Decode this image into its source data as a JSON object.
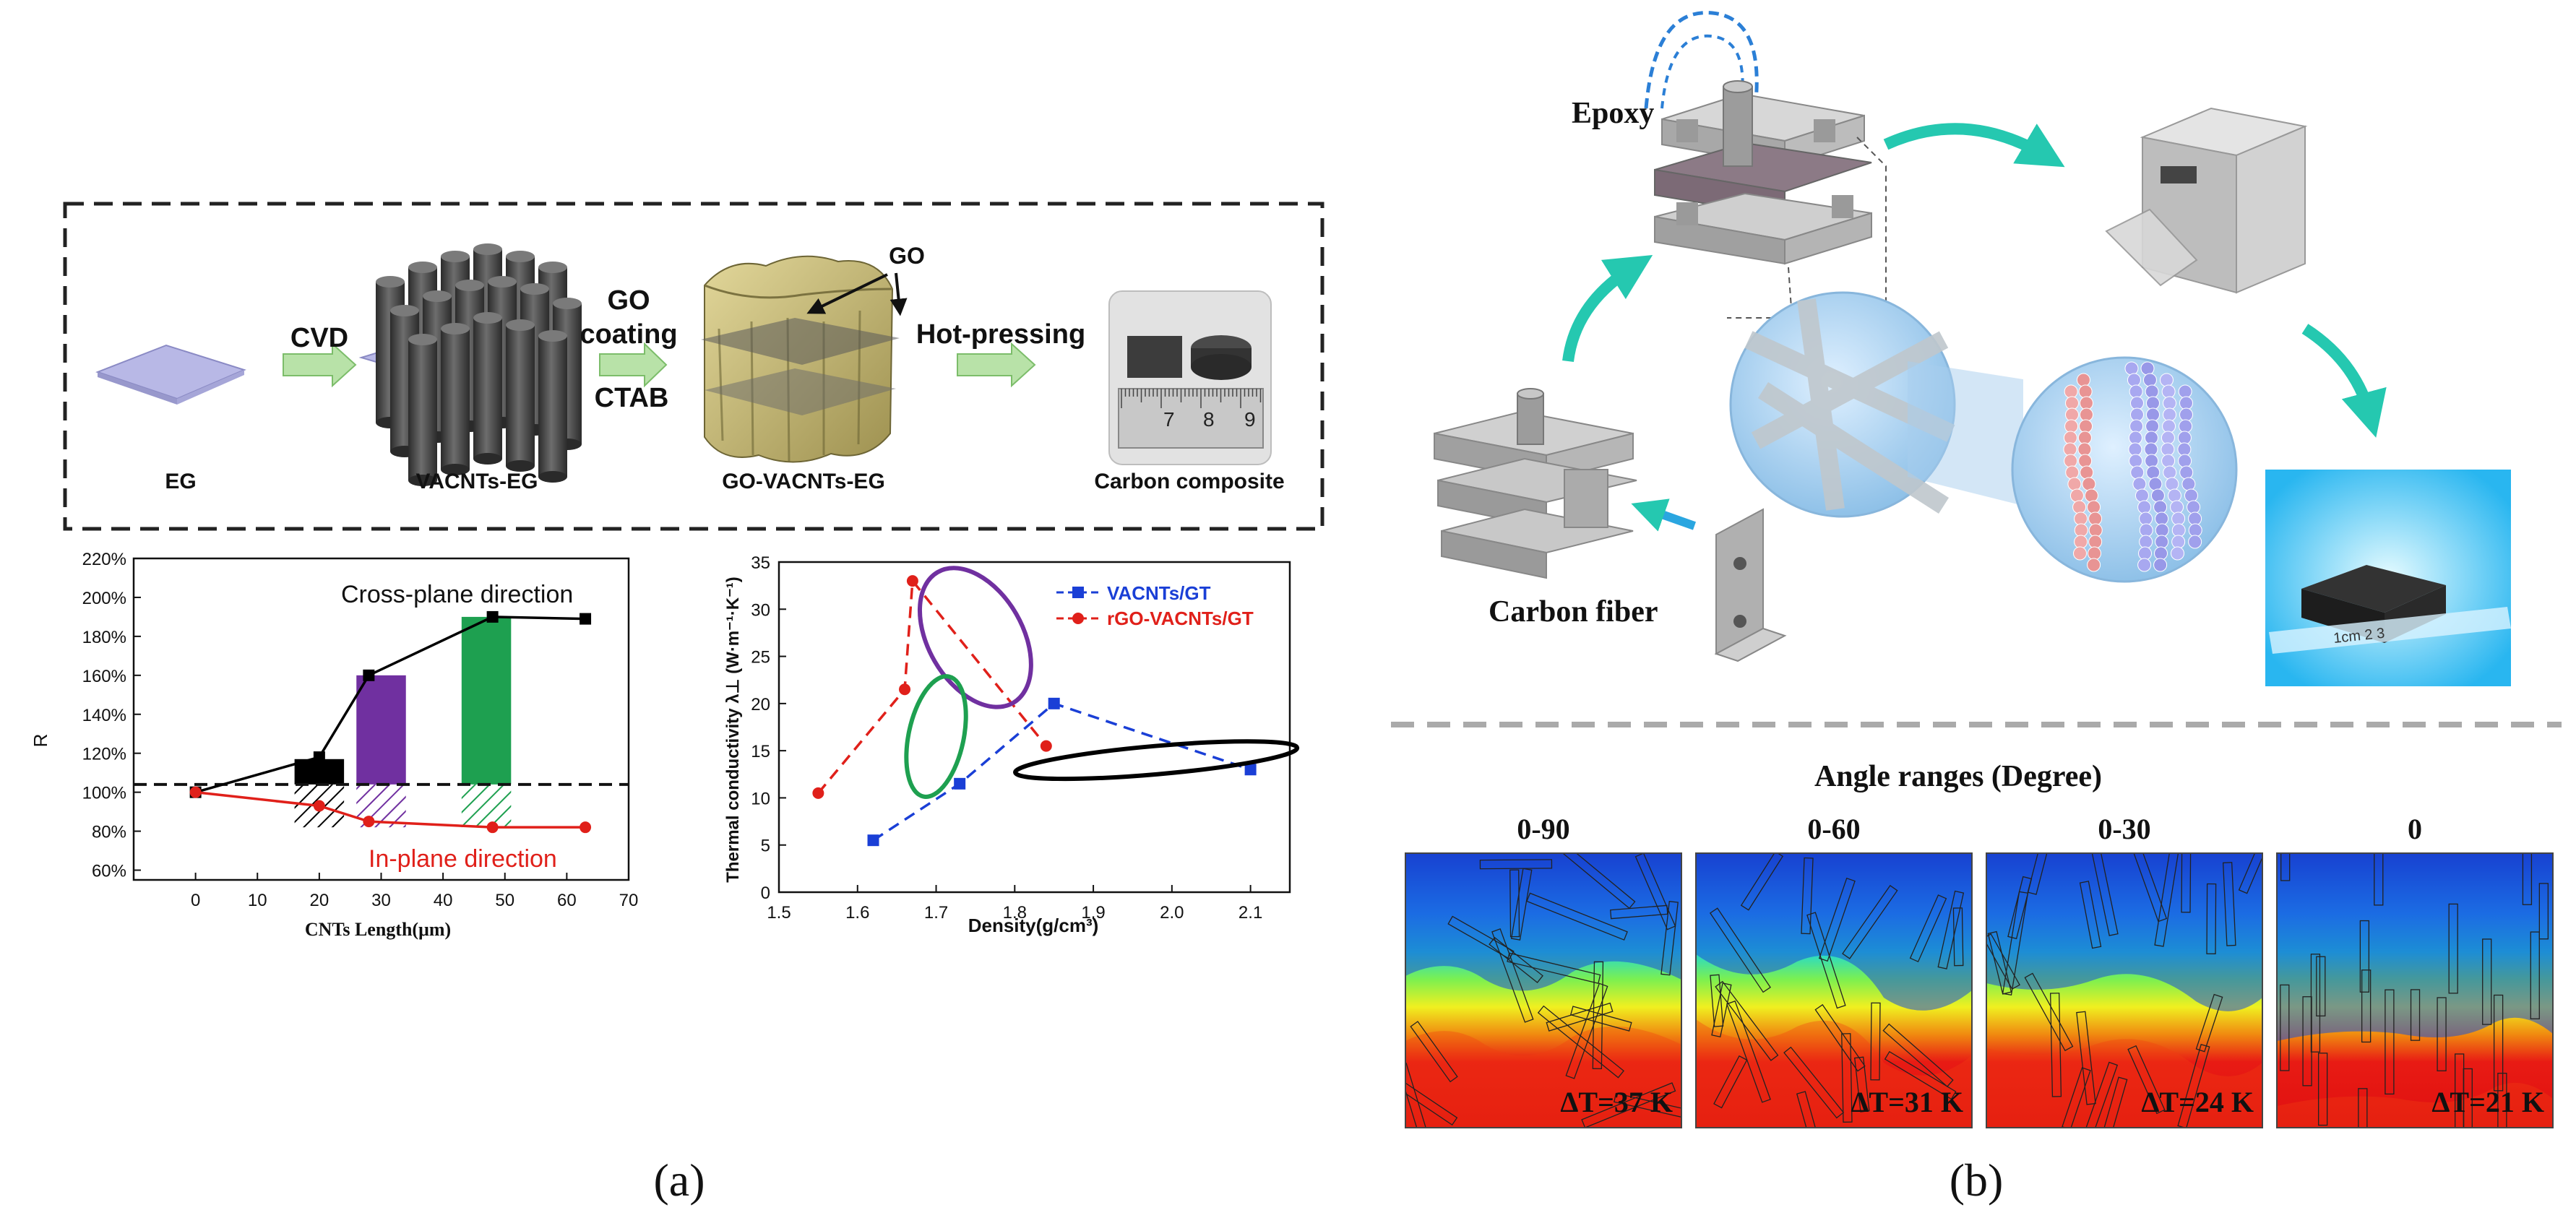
{
  "panel_a": {
    "caption": "(a)",
    "process": {
      "steps": [
        {
          "label": "EG"
        },
        {
          "label": "VACNTs-EG"
        },
        {
          "label": "GO-VACNTs-EG"
        },
        {
          "label": "Carbon composite"
        }
      ],
      "arrows": [
        {
          "lines": [
            "CVD"
          ]
        },
        {
          "lines": [
            "GO",
            "coating"
          ],
          "below": "CTAB"
        },
        {
          "lines": [
            "Hot-pressing"
          ]
        }
      ],
      "go_label": "GO",
      "ruler_numbers": [
        "7",
        "8",
        "9"
      ]
    },
    "charts": [
      {
        "type": "line",
        "xlabel": "CNTs Length(μm)",
        "ylabel": "R",
        "xlim": [
          -10,
          70
        ],
        "ylim": [
          55,
          220
        ],
        "xticks": [
          0,
          10,
          20,
          30,
          40,
          50,
          60,
          70
        ],
        "yticks": [
          "60%",
          "80%",
          "100%",
          "120%",
          "140%",
          "160%",
          "180%",
          "200%",
          "220%"
        ],
        "ytick_values": [
          60,
          80,
          100,
          120,
          140,
          160,
          180,
          200,
          220
        ],
        "reference_line": 104,
        "bars": [
          {
            "x": 20,
            "value": 117,
            "color": "#000000"
          },
          {
            "x": 30,
            "value": 160,
            "color": "#7030a0"
          },
          {
            "x": 47,
            "value": 190,
            "color": "#1ea050"
          }
        ],
        "series": [
          {
            "name": "Cross-plane direction",
            "color": "#000000",
            "marker": "square",
            "x": [
              0,
              20,
              28,
              48,
              63
            ],
            "y": [
              100,
              118,
              160,
              190,
              189
            ]
          },
          {
            "name": "In-plane direction",
            "color": "#e0201a",
            "marker": "circle",
            "x": [
              0,
              20,
              28,
              48,
              63
            ],
            "y": [
              100,
              93,
              85,
              82,
              82
            ]
          }
        ]
      },
      {
        "type": "line",
        "xlabel": "Density(g/cm³)",
        "ylabel": "Thermal conductivity λ⊥ (W·m⁻¹·K⁻¹)",
        "xlim": [
          1.5,
          2.15
        ],
        "ylim": [
          0,
          35
        ],
        "xticks": [
          "1.5",
          "1.6",
          "1.7",
          "1.8",
          "1.9",
          "2.0",
          "2.1"
        ],
        "xtick_values": [
          1.5,
          1.6,
          1.7,
          1.8,
          1.9,
          2.0,
          2.1
        ],
        "yticks": [
          "0",
          "5",
          "10",
          "15",
          "20",
          "25",
          "30",
          "35"
        ],
        "ytick_values": [
          0,
          5,
          10,
          15,
          20,
          25,
          30,
          35
        ],
        "legend_position": "top-right",
        "series": [
          {
            "name": "VACNTs/GT",
            "color": "#1a3fd6",
            "marker": "square",
            "dashed": true,
            "x": [
              1.62,
              1.73,
              1.85,
              2.1
            ],
            "y": [
              5.5,
              11.5,
              20,
              13
            ]
          },
          {
            "name": "rGO-VACNTs/GT",
            "color": "#e0201a",
            "marker": "circle",
            "dashed": true,
            "x": [
              1.55,
              1.66,
              1.67,
              1.84
            ],
            "y": [
              10.5,
              21.5,
              33,
              15.5
            ]
          }
        ],
        "ellipses": [
          {
            "color": "#7030a0",
            "cx": 1.75,
            "cy": 27,
            "rx": 0.06,
            "ry": 8,
            "rot": 30
          },
          {
            "color": "#1ea050",
            "cx": 1.7,
            "cy": 16.5,
            "rx": 0.035,
            "ry": 6.5,
            "rot": -12
          },
          {
            "color": "#000000",
            "cx": 1.98,
            "cy": 14,
            "rx": 0.18,
            "ry": 1.5,
            "rot": 5
          }
        ]
      }
    ]
  },
  "panel_b": {
    "caption": "(b)",
    "labels": {
      "epoxy": "Epoxy",
      "carbon_fiber": "Carbon fiber"
    },
    "ruler_text": "1cm  2  3",
    "angle_title": "Angle ranges (Degree)",
    "simulations": [
      {
        "angle": "0-90",
        "delta": "ΔT=37 K"
      },
      {
        "angle": "0-60",
        "delta": "ΔT=31 K"
      },
      {
        "angle": "0-30",
        "delta": "ΔT=24 K"
      },
      {
        "angle": "0",
        "delta": "ΔT=21 K"
      }
    ]
  }
}
